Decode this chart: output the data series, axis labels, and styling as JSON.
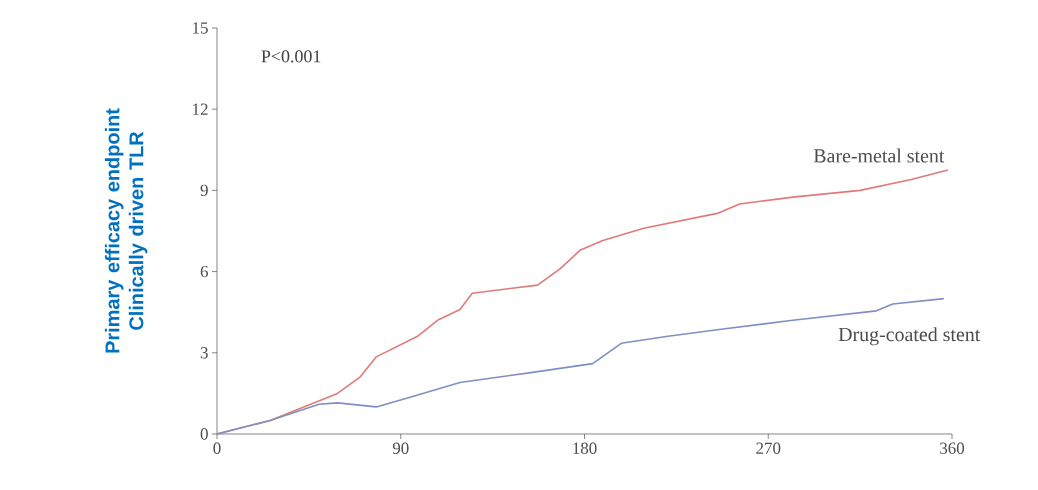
{
  "chart_data": {
    "type": "line",
    "ylabel": "Primary efficacy endpoint Clinically driven TLR",
    "annotations": [
      "P<0.001"
    ],
    "xlim": [
      0,
      360
    ],
    "xticks": [
      0,
      90,
      180,
      270,
      360
    ],
    "ylim": [
      0,
      15
    ],
    "yticks": [
      0,
      3,
      6,
      9,
      12,
      15
    ],
    "grid": false,
    "legend": false,
    "marker": "none",
    "line_style": "solid",
    "series": [
      {
        "name": "Bare-metal stent",
        "color": "#e07a7a",
        "x": [
          0,
          26,
          59,
          70,
          78,
          98,
          108,
          119,
          125,
          157,
          168,
          178,
          189,
          209,
          245,
          256,
          282,
          315,
          340,
          358
        ],
        "values": [
          0,
          0.5,
          1.5,
          2.1,
          2.85,
          3.6,
          4.2,
          4.6,
          5.2,
          5.5,
          6.1,
          6.8,
          7.15,
          7.6,
          8.15,
          8.5,
          8.75,
          9.0,
          9.4,
          9.75
        ]
      },
      {
        "name": "Drug-coated stent",
        "color": "#7f8fc4",
        "x": [
          0,
          26,
          50,
          59,
          78,
          95,
          119,
          152,
          184,
          198,
          220,
          245,
          282,
          323,
          331,
          356
        ],
        "values": [
          0,
          0.5,
          1.1,
          1.15,
          1.0,
          1.37,
          1.9,
          2.25,
          2.6,
          3.35,
          3.6,
          3.85,
          4.2,
          4.55,
          4.8,
          5.0
        ]
      }
    ]
  }
}
